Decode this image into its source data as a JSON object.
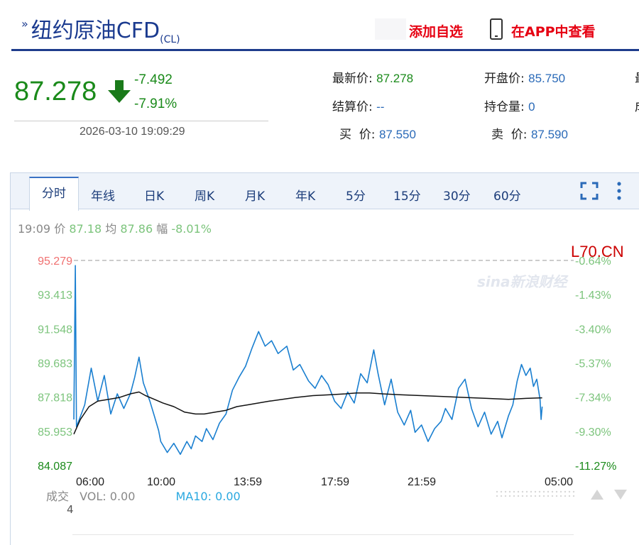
{
  "header": {
    "title_main": "纽约原油CFD",
    "title_code": "(CL)",
    "add_watchlist": "添加自选",
    "open_app": "在APP中查看"
  },
  "quote": {
    "price": "87.278",
    "change": "-7.492",
    "change_pct": "-7.91%",
    "timestamp": "2026-03-10 19:09:29",
    "fields": [
      {
        "label": "最新价:",
        "value": "87.278",
        "color": "green"
      },
      {
        "label": "开盘价:",
        "value": "85.750",
        "color": "blue"
      },
      {
        "label": "结算价:",
        "value": "--",
        "color": "blue"
      },
      {
        "label": "持仓量:",
        "value": "0",
        "color": "blue"
      },
      {
        "label": "买  价:",
        "value": "87.550",
        "color": "blue"
      },
      {
        "label": "卖  价:",
        "value": "87.590",
        "color": "blue"
      }
    ],
    "cut_right_1": "最",
    "cut_right_2": "成"
  },
  "tabs": [
    "分时",
    "年线",
    "日K",
    "周K",
    "月K",
    "年K",
    "5分",
    "15分",
    "30分",
    "60分"
  ],
  "info_bar": {
    "time": "19:09",
    "price_label": "价",
    "price": "87.18",
    "avg_label": "均",
    "avg": "87.86",
    "amp_label": "幅",
    "amp": "-8.01%"
  },
  "overlay_text": "L70.CN",
  "watermark": "sina新浪财经",
  "volume": {
    "label": "成交",
    "vol": "VOL: 0.00",
    "ma10": "MA10: 0.00",
    "axis_value": "4"
  },
  "colors": {
    "accent": "#1e3c8c",
    "down": "#1a8a1a",
    "price_line": "#1a7fd0",
    "avg_line": "#111111",
    "link_red": "#e60012"
  },
  "chart_data": {
    "type": "line",
    "y_ticks": [
      "95.279",
      "93.413",
      "91.548",
      "89.683",
      "87.818",
      "85.953",
      "84.087"
    ],
    "pct_ticks": [
      "-0.64%",
      "-1.43%",
      "-3.40%",
      "-5.37%",
      "-7.34%",
      "-9.30%",
      "-11.27%"
    ],
    "x_ticks": [
      "06:00",
      "10:00",
      "13:59",
      "17:59",
      "21:59",
      "05:00"
    ],
    "ylim": [
      84.087,
      95.279
    ],
    "x_range_hours": [
      6.0,
      29.0
    ],
    "reference_line": 95.279,
    "series": [
      {
        "color": "#1a7fd0",
        "points": [
          [
            6.0,
            86.6
          ],
          [
            6.07,
            95.0
          ],
          [
            6.12,
            86.2
          ],
          [
            6.25,
            86.6
          ],
          [
            6.5,
            87.4
          ],
          [
            6.8,
            89.4
          ],
          [
            7.1,
            87.6
          ],
          [
            7.4,
            89.0
          ],
          [
            7.7,
            86.9
          ],
          [
            8.0,
            88.0
          ],
          [
            8.3,
            87.2
          ],
          [
            8.6,
            88.0
          ],
          [
            8.8,
            88.9
          ],
          [
            9.0,
            90.0
          ],
          [
            9.2,
            88.6
          ],
          [
            9.5,
            87.6
          ],
          [
            9.7,
            86.8
          ],
          [
            9.9,
            86.0
          ],
          [
            10.0,
            85.4
          ],
          [
            10.3,
            84.8
          ],
          [
            10.6,
            85.3
          ],
          [
            10.9,
            84.7
          ],
          [
            11.2,
            85.4
          ],
          [
            11.4,
            85.0
          ],
          [
            11.6,
            85.7
          ],
          [
            11.9,
            85.4
          ],
          [
            12.1,
            86.1
          ],
          [
            12.4,
            85.5
          ],
          [
            12.7,
            86.4
          ],
          [
            13.0,
            86.9
          ],
          [
            13.3,
            88.2
          ],
          [
            13.6,
            88.9
          ],
          [
            13.9,
            89.5
          ],
          [
            14.2,
            90.5
          ],
          [
            14.5,
            91.4
          ],
          [
            14.8,
            90.6
          ],
          [
            15.1,
            90.9
          ],
          [
            15.4,
            90.2
          ],
          [
            15.8,
            90.6
          ],
          [
            16.1,
            89.3
          ],
          [
            16.4,
            89.6
          ],
          [
            16.8,
            88.7
          ],
          [
            17.1,
            88.3
          ],
          [
            17.4,
            89.0
          ],
          [
            17.7,
            88.5
          ],
          [
            18.0,
            87.6
          ],
          [
            18.3,
            87.2
          ],
          [
            18.6,
            88.1
          ],
          [
            18.9,
            87.5
          ],
          [
            19.2,
            89.1
          ],
          [
            19.5,
            88.6
          ],
          [
            19.8,
            90.4
          ],
          [
            20.0,
            89.1
          ],
          [
            20.3,
            87.4
          ],
          [
            20.6,
            88.8
          ],
          [
            20.9,
            87.0
          ],
          [
            21.2,
            86.3
          ],
          [
            21.5,
            87.1
          ],
          [
            21.7,
            85.9
          ],
          [
            22.0,
            86.3
          ],
          [
            22.3,
            85.4
          ],
          [
            22.6,
            86.1
          ],
          [
            22.9,
            86.5
          ],
          [
            23.1,
            87.2
          ],
          [
            23.4,
            86.6
          ],
          [
            23.7,
            88.3
          ],
          [
            24.0,
            88.8
          ],
          [
            24.3,
            87.2
          ],
          [
            24.6,
            86.2
          ],
          [
            24.9,
            87.0
          ],
          [
            25.2,
            85.8
          ],
          [
            25.5,
            86.5
          ],
          [
            25.7,
            85.6
          ],
          [
            26.0,
            86.8
          ],
          [
            26.2,
            87.4
          ],
          [
            26.4,
            88.7
          ],
          [
            26.6,
            89.6
          ],
          [
            26.8,
            89.0
          ],
          [
            27.0,
            89.4
          ],
          [
            27.15,
            88.4
          ],
          [
            27.3,
            88.8
          ],
          [
            27.45,
            87.7
          ],
          [
            27.5,
            86.6
          ],
          [
            27.55,
            87.3
          ]
        ]
      },
      {
        "color": "#111111",
        "points": [
          [
            6.0,
            85.8
          ],
          [
            6.3,
            86.6
          ],
          [
            6.7,
            87.3
          ],
          [
            7.1,
            87.6
          ],
          [
            7.6,
            87.7
          ],
          [
            8.1,
            87.8
          ],
          [
            8.6,
            88.0
          ],
          [
            9.0,
            88.1
          ],
          [
            9.3,
            87.9
          ],
          [
            9.7,
            87.7
          ],
          [
            10.1,
            87.5
          ],
          [
            10.6,
            87.3
          ],
          [
            11.1,
            87.0
          ],
          [
            11.6,
            86.9
          ],
          [
            12.0,
            86.9
          ],
          [
            12.5,
            87.0
          ],
          [
            13.0,
            87.1
          ],
          [
            13.5,
            87.3
          ],
          [
            14.0,
            87.4
          ],
          [
            14.5,
            87.5
          ],
          [
            15.0,
            87.6
          ],
          [
            15.6,
            87.7
          ],
          [
            16.2,
            87.8
          ],
          [
            17.0,
            87.9
          ],
          [
            17.8,
            87.95
          ],
          [
            18.5,
            88.0
          ],
          [
            19.0,
            88.05
          ],
          [
            19.6,
            88.05
          ],
          [
            20.2,
            88.0
          ],
          [
            21.0,
            87.95
          ],
          [
            22.0,
            87.9
          ],
          [
            23.0,
            87.85
          ],
          [
            24.0,
            87.8
          ],
          [
            25.0,
            87.75
          ],
          [
            26.0,
            87.7
          ],
          [
            26.8,
            87.75
          ],
          [
            27.55,
            87.78
          ]
        ]
      }
    ],
    "volume": {
      "value": 0.0,
      "ma10": 0.0,
      "axis_max": 4
    }
  }
}
